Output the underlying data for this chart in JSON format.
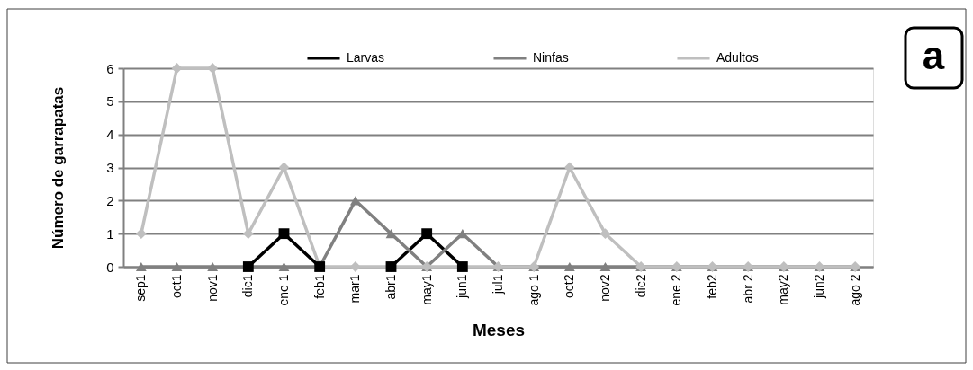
{
  "chart_data": {
    "type": "line",
    "categories": [
      "sep1",
      "oct1",
      "nov1",
      "dic1",
      "ene 1",
      "feb1",
      "mar1",
      "abr1",
      "may1",
      "jun1",
      "jul1",
      "ago 1",
      "oct2",
      "nov2",
      "dic2",
      "ene 2",
      "feb2",
      "abr 2",
      "may2",
      "jun2",
      "ago 2"
    ],
    "series": [
      {
        "name": "Larvas",
        "color": "#000000",
        "marker": "square",
        "values": [
          null,
          null,
          null,
          0,
          1,
          0,
          null,
          0,
          1,
          0,
          null,
          null,
          null,
          null,
          null,
          null,
          null,
          null,
          null,
          null,
          null
        ]
      },
      {
        "name": "Ninfas",
        "color": "#808080",
        "marker": "triangle",
        "values": [
          0,
          0,
          0,
          0,
          0,
          0,
          2,
          1,
          0,
          1,
          0,
          0,
          0,
          0,
          0,
          0,
          0,
          0,
          0,
          0,
          0
        ]
      },
      {
        "name": "Adultos",
        "color": "#bfbfbf",
        "marker": "diamond",
        "values": [
          1,
          6,
          6,
          1,
          3,
          0,
          0,
          0,
          0,
          0,
          0,
          0,
          3,
          1,
          0,
          0,
          0,
          0,
          0,
          0,
          0
        ]
      }
    ],
    "ylim": [
      0,
      6
    ],
    "yticks": [
      0,
      1,
      2,
      3,
      4,
      5,
      6
    ],
    "xlabel": "Meses",
    "ylabel": "Número de garrapatas",
    "grid": "y",
    "legend": "top",
    "annotations": [
      "a"
    ]
  }
}
